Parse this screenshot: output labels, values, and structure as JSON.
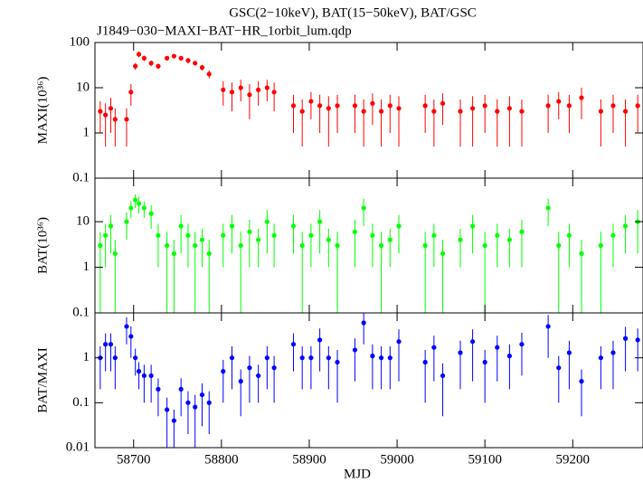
{
  "chart_data": [
    {
      "type": "scatter",
      "title": "GSC(2−10keV), BAT(15−50keV), BAT/GSC",
      "subtitle": "J1849−030−MAXI−BAT−HR_1orbit_lum.qdp",
      "ylabel": "MAXI(10³⁶)",
      "log_y": true,
      "ylim": [
        0.1,
        100
      ],
      "yticks": [
        0.1,
        1,
        10,
        100
      ],
      "xlim": [
        58656,
        59280
      ],
      "xticks": [
        58700,
        58800,
        58900,
        59000,
        59100,
        59200
      ],
      "series": [
        {
          "color": "#ff0000",
          "x": [
            58662,
            58668,
            58674,
            58679,
            58692,
            58697,
            58702,
            58706,
            58712,
            58720,
            58728,
            58738,
            58746,
            58754,
            58762,
            58770,
            58778,
            58786,
            58802,
            58812,
            58822,
            58832,
            58842,
            58852,
            58860,
            58882,
            58892,
            58902,
            58912,
            58922,
            58932,
            58952,
            58962,
            58972,
            58982,
            58992,
            59002,
            59032,
            59042,
            59052,
            59072,
            59086,
            59100,
            59114,
            59128,
            59142,
            59172,
            59184,
            59196,
            59210,
            59232,
            59246,
            59260,
            59274
          ],
          "values": [
            3,
            2.5,
            3.5,
            2,
            2,
            8,
            30,
            55,
            45,
            35,
            30,
            45,
            50,
            45,
            40,
            35,
            28,
            20,
            9,
            8,
            10,
            7,
            9,
            10,
            8,
            4,
            3,
            5,
            4,
            3.5,
            4,
            4,
            3,
            4.5,
            3,
            4,
            3.5,
            4,
            3,
            4.5,
            3,
            3.5,
            4,
            3,
            3.5,
            3,
            4,
            5,
            4,
            6,
            3,
            4,
            3,
            4
          ],
          "errors": [
            2,
            2,
            2.5,
            1.5,
            1.5,
            4,
            5,
            8,
            6,
            5,
            4,
            5,
            5,
            5,
            5,
            4,
            4,
            4,
            5,
            5,
            5,
            5,
            5,
            5,
            5,
            3,
            2.5,
            3,
            3,
            3,
            3,
            3,
            2.5,
            3,
            2.5,
            3,
            3,
            3,
            2.5,
            3,
            2.5,
            3,
            3,
            2.5,
            3,
            2.5,
            3,
            3,
            3,
            4,
            2.5,
            3,
            2.5,
            3
          ]
        }
      ]
    },
    {
      "type": "scatter",
      "ylabel": "BAT(10³⁶)",
      "log_y": true,
      "ylim": [
        0.1,
        90
      ],
      "yticks": [
        0.1,
        1,
        10
      ],
      "xlim": [
        58656,
        59280
      ],
      "xticks": [
        58700,
        58800,
        58900,
        59000,
        59100,
        59200
      ],
      "series": [
        {
          "color": "#00ff00",
          "x": [
            58662,
            58668,
            58674,
            58679,
            58692,
            58697,
            58702,
            58706,
            58712,
            58720,
            58728,
            58738,
            58746,
            58754,
            58762,
            58770,
            58778,
            58786,
            58802,
            58812,
            58822,
            58832,
            58842,
            58852,
            58860,
            58882,
            58892,
            58902,
            58912,
            58922,
            58932,
            58952,
            58962,
            58972,
            58982,
            58992,
            59002,
            59032,
            59042,
            59052,
            59072,
            59086,
            59100,
            59114,
            59128,
            59142,
            59172,
            59184,
            59196,
            59210,
            59232,
            59246,
            59260,
            59274
          ],
          "values": [
            3,
            5,
            8,
            2,
            10,
            20,
            30,
            25,
            20,
            15,
            5,
            3,
            2,
            8,
            5,
            3,
            4,
            2,
            5,
            8,
            3,
            6,
            4,
            10,
            5,
            8,
            3,
            5,
            10,
            4,
            3,
            6,
            20,
            5,
            3,
            4,
            8,
            3,
            5,
            2,
            4,
            8,
            3,
            5,
            4,
            6,
            20,
            3,
            5,
            2,
            3,
            5,
            8,
            10
          ],
          "errors": [
            3,
            4,
            6,
            2,
            6,
            8,
            10,
            10,
            8,
            8,
            4,
            3,
            2,
            6,
            4,
            3,
            3,
            2,
            4,
            6,
            3,
            5,
            3,
            8,
            4,
            6,
            3,
            4,
            8,
            3,
            3,
            5,
            12,
            4,
            3,
            3,
            6,
            3,
            4,
            2,
            3,
            6,
            3,
            4,
            3,
            5,
            12,
            3,
            4,
            2,
            3,
            4,
            6,
            8
          ]
        }
      ]
    },
    {
      "type": "scatter",
      "ylabel": "BAT/MAXI",
      "xlabel": "MJD",
      "log_y": true,
      "ylim": [
        0.01,
        10
      ],
      "yticks": [
        0.01,
        0.1,
        1
      ],
      "xlim": [
        58656,
        59280
      ],
      "xticks": [
        58700,
        58800,
        58900,
        59000,
        59100,
        59200
      ],
      "series": [
        {
          "color": "#0000ff",
          "x": [
            58662,
            58668,
            58674,
            58679,
            58692,
            58697,
            58702,
            58706,
            58712,
            58720,
            58728,
            58738,
            58746,
            58754,
            58762,
            58770,
            58778,
            58786,
            58802,
            58812,
            58822,
            58832,
            58842,
            58852,
            58860,
            58882,
            58892,
            58902,
            58912,
            58922,
            58932,
            58952,
            58962,
            58972,
            58982,
            58992,
            59002,
            59032,
            59042,
            59052,
            59072,
            59086,
            59100,
            59114,
            59128,
            59142,
            59172,
            59184,
            59196,
            59210,
            59232,
            59246,
            59260,
            59274
          ],
          "values": [
            1,
            2,
            2,
            1,
            5,
            3,
            1,
            0.5,
            0.4,
            0.4,
            0.2,
            0.07,
            0.04,
            0.2,
            0.1,
            0.08,
            0.15,
            0.1,
            0.5,
            1,
            0.3,
            0.6,
            0.4,
            1,
            0.6,
            2,
            1,
            1,
            2.5,
            1,
            0.8,
            1.5,
            6,
            1.1,
            1,
            1,
            2.3,
            0.8,
            1.7,
            0.4,
            1.3,
            2.3,
            0.8,
            1.7,
            1.1,
            2,
            5,
            0.6,
            1.3,
            0.3,
            1,
            1.3,
            2.7,
            2.5
          ],
          "errors": [
            0.8,
            1.5,
            1.5,
            0.8,
            3,
            2,
            0.6,
            0.3,
            0.3,
            0.3,
            0.15,
            0.06,
            0.03,
            0.15,
            0.08,
            0.07,
            0.12,
            0.08,
            0.4,
            0.8,
            0.25,
            0.5,
            0.3,
            0.8,
            0.5,
            1.5,
            0.8,
            0.8,
            2,
            0.8,
            0.7,
            1.2,
            4,
            0.9,
            0.8,
            0.8,
            2,
            0.7,
            1.4,
            0.35,
            1.1,
            2,
            0.7,
            1.4,
            0.9,
            1.6,
            4,
            0.5,
            1.1,
            0.25,
            0.8,
            1.1,
            2.2,
            2
          ]
        }
      ]
    }
  ]
}
